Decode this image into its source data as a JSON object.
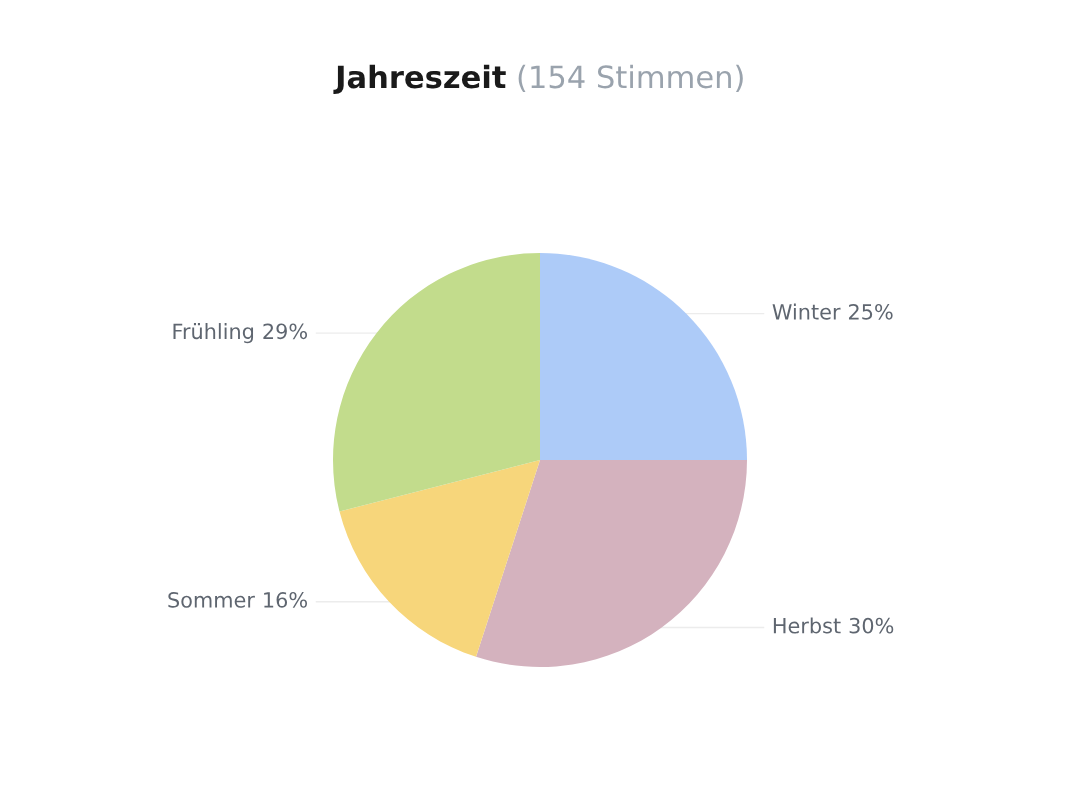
{
  "chart_data": {
    "type": "pie",
    "title": "Jahreszeit",
    "subtitle": "(154 Stimmen)",
    "categories": [
      "Winter",
      "Herbst",
      "Sommer",
      "Frühling"
    ],
    "values": [
      25,
      30,
      16,
      29
    ],
    "colors": [
      "#adcbf8",
      "#d4b2be",
      "#f7d67b",
      "#c2dc8c"
    ],
    "value_labels": [
      "25%",
      "30%",
      "16%",
      "29%"
    ],
    "legend": false
  }
}
